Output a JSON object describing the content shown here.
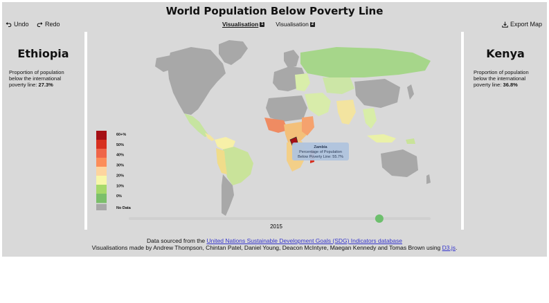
{
  "header": {
    "title": "World Population Below Poverty Line"
  },
  "toolbar": {
    "undo_label": "Undo",
    "redo_label": "Redo",
    "export_label": "Export Map",
    "tabs": [
      {
        "label": "Visualisation",
        "num": "1",
        "active": true
      },
      {
        "label": "Visualisation",
        "num": "2",
        "active": false
      }
    ]
  },
  "left_panel": {
    "country": "Ethiopia",
    "description": "Proportion of population below the international poverty line:",
    "value": "27.3%"
  },
  "right_panel": {
    "country": "Kenya",
    "description": "Proportion of population below the international poverty line:",
    "value": "36.8%"
  },
  "map": {
    "legend": {
      "labels": [
        "60+%",
        "50%",
        "40%",
        "30%",
        "20%",
        "10%",
        "0%",
        "No Data"
      ],
      "colors": [
        "#a50f15",
        "#d7301f",
        "#ef6548",
        "#fc8d59",
        "#fdd49e",
        "#f7f7a8",
        "#a6d96a",
        "#7bbf6a",
        "#a8a8a8"
      ]
    },
    "tooltip": {
      "country": "Zambia",
      "line1": "Percentage of Population",
      "line2": "Below Poverty Line: 55.7%"
    },
    "year": "2015",
    "slider_fraction": 0.83,
    "slider_color": "#6dbf6d"
  },
  "footer": {
    "line1_prefix": "Data sourced from the ",
    "line1_link": "United Nations Sustainable Development Goals (SDG) Indicators database",
    "line2_prefix": "Visualisations made by Andrew Thompson, Chintan Patel, Daniel Young, Deacon McIntyre, Maegan Kennedy and Tomas Brown using ",
    "line2_link": "D3.js",
    "line2_suffix": "."
  }
}
